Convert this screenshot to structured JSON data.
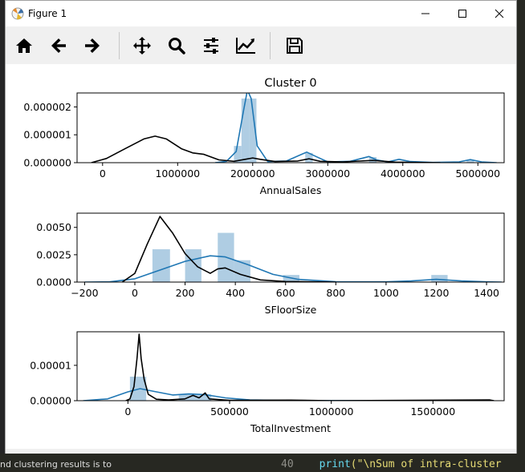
{
  "window": {
    "title": "Figure 1"
  },
  "toolbar": {
    "buttons": [
      "home-icon",
      "back-arrow-icon",
      "forward-arrow-icon",
      "pan-icon",
      "zoom-icon",
      "subplots-icon",
      "edit-curves-icon",
      "save-icon"
    ]
  },
  "background": {
    "left_text": "nd clustering results is to",
    "code_line_number": "40",
    "code_keyword": "print",
    "code_string": "(\"\\nSum of intra-cluster"
  },
  "chart_data": [
    {
      "type": "area",
      "title": "Cluster 0",
      "xlabel": "AnnualSales",
      "ylabel": "",
      "xlim": [
        -340000,
        5350000
      ],
      "ylim": [
        0,
        2.5e-06
      ],
      "xticks": [
        0,
        1000000,
        2000000,
        3000000,
        4000000,
        5000000
      ],
      "xtick_labels": [
        "0",
        "1000000",
        "2000000",
        "3000000",
        "4000000",
        "5000000"
      ],
      "yticks": [
        0,
        1e-06,
        2e-06
      ],
      "ytick_labels": [
        "0.000000",
        "0.000001",
        "0.000002"
      ],
      "hist": {
        "color": "#a6c8e0",
        "bins": [
          [
            1750000,
            1850000,
            6e-07
          ],
          [
            1850000,
            1950000,
            2.3e-06
          ],
          [
            1950000,
            2050000,
            2.3e-06
          ],
          [
            2700000,
            2800000,
            3.5e-07
          ],
          [
            3550000,
            3650000,
            2e-07
          ],
          [
            4850000,
            4950000,
            8e-08
          ]
        ]
      },
      "series": [
        {
          "color": "#1f77b4",
          "points": [
            [
              1500000,
              0
            ],
            [
              1650000,
              5e-08
            ],
            [
              1780000,
              4e-07
            ],
            [
              1880000,
              1.9e-06
            ],
            [
              1930000,
              2.6e-06
            ],
            [
              1980000,
              2.3e-06
            ],
            [
              2060000,
              6e-07
            ],
            [
              2200000,
              4e-08
            ],
            [
              2450000,
              6e-08
            ],
            [
              2650000,
              3e-07
            ],
            [
              2720000,
              3.8e-07
            ],
            [
              2820000,
              2.5e-07
            ],
            [
              3000000,
              3e-08
            ],
            [
              3300000,
              5e-08
            ],
            [
              3550000,
              2.2e-07
            ],
            [
              3650000,
              1e-07
            ],
            [
              3800000,
              3e-08
            ],
            [
              3950000,
              1.2e-07
            ],
            [
              4100000,
              4e-08
            ],
            [
              4400000,
              1e-08
            ],
            [
              4750000,
              3e-08
            ],
            [
              4900000,
              1.1e-07
            ],
            [
              5050000,
              3e-08
            ],
            [
              5250000,
              0
            ]
          ]
        },
        {
          "color": "#000000",
          "points": [
            [
              -150000,
              0
            ],
            [
              50000,
              1.5e-07
            ],
            [
              300000,
              5e-07
            ],
            [
              550000,
              8.5e-07
            ],
            [
              700000,
              9.5e-07
            ],
            [
              850000,
              8.5e-07
            ],
            [
              1050000,
              5e-07
            ],
            [
              1200000,
              3.5e-07
            ],
            [
              1350000,
              3e-07
            ],
            [
              1550000,
              1e-07
            ],
            [
              1750000,
              5e-08
            ],
            [
              1900000,
              1.2e-07
            ],
            [
              2000000,
              1.7e-07
            ],
            [
              2100000,
              1.2e-07
            ],
            [
              2300000,
              4e-08
            ],
            [
              2600000,
              6e-08
            ],
            [
              2750000,
              1.4e-07
            ],
            [
              2900000,
              5e-08
            ],
            [
              3200000,
              3e-08
            ],
            [
              3600000,
              8e-08
            ],
            [
              3900000,
              2e-08
            ],
            [
              4500000,
              0
            ]
          ]
        }
      ]
    },
    {
      "type": "area",
      "title": "",
      "xlabel": "SFloorSize",
      "ylabel": "",
      "xlim": [
        -230,
        1470
      ],
      "ylim": [
        0,
        0.0063
      ],
      "xticks": [
        -200,
        0,
        200,
        400,
        600,
        800,
        1000,
        1200,
        1400
      ],
      "xtick_labels": [
        "−200",
        "0",
        "200",
        "400",
        "600",
        "800",
        "1000",
        "1200",
        "1400"
      ],
      "yticks": [
        0,
        0.0025,
        0.005
      ],
      "ytick_labels": [
        "0.0000",
        "0.0025",
        "0.0050"
      ],
      "hist": {
        "color": "#a6c8e0",
        "bins": [
          [
            70,
            140,
            0.003
          ],
          [
            200,
            265,
            0.003
          ],
          [
            330,
            395,
            0.0045
          ],
          [
            395,
            460,
            0.002
          ],
          [
            590,
            655,
            0.00065
          ],
          [
            1180,
            1245,
            0.00065
          ]
        ]
      },
      "series": [
        {
          "color": "#1f77b4",
          "points": [
            [
              -200,
              0
            ],
            [
              -100,
              2e-05
            ],
            [
              0,
              0.0003
            ],
            [
              100,
              0.0011
            ],
            [
              200,
              0.0019
            ],
            [
              300,
              0.0024
            ],
            [
              360,
              0.0023
            ],
            [
              450,
              0.0016
            ],
            [
              550,
              0.0007
            ],
            [
              650,
              0.00025
            ],
            [
              800,
              3e-05
            ],
            [
              1000,
              2e-05
            ],
            [
              1100,
              0.0001
            ],
            [
              1200,
              0.00025
            ],
            [
              1300,
              0.0001
            ],
            [
              1400,
              2e-05
            ],
            [
              1460,
              0
            ]
          ]
        },
        {
          "color": "#000000",
          "points": [
            [
              -50,
              0
            ],
            [
              0,
              0.0008
            ],
            [
              50,
              0.0035
            ],
            [
              100,
              0.006
            ],
            [
              150,
              0.0045
            ],
            [
              200,
              0.0026
            ],
            [
              250,
              0.0014
            ],
            [
              300,
              0.0008
            ],
            [
              330,
              0.0012
            ],
            [
              360,
              0.0013
            ],
            [
              420,
              0.0007
            ],
            [
              500,
              0.0002
            ],
            [
              600,
              5e-05
            ],
            [
              800,
              0
            ]
          ]
        }
      ]
    },
    {
      "type": "area",
      "title": "",
      "xlabel": "TotalInvestment",
      "ylabel": "",
      "xlim": [
        -250000,
        1850000
      ],
      "ylim": [
        0,
        1.95e-05
      ],
      "xticks": [
        0,
        500000,
        1000000,
        1500000
      ],
      "xtick_labels": [
        "0",
        "500000",
        "1000000",
        "1500000"
      ],
      "yticks": [
        0,
        1e-05
      ],
      "ytick_labels": [
        "0.00000",
        "0.00001"
      ],
      "hist": {
        "color": "#a6c8e0",
        "bins": [
          [
            10000,
            90000,
            6.8e-06
          ],
          [
            250000,
            330000,
            1.8e-06
          ],
          [
            330000,
            410000,
            1.8e-06
          ]
        ]
      },
      "series": [
        {
          "color": "#1f77b4",
          "points": [
            [
              -220000,
              0
            ],
            [
              -100000,
              5e-07
            ],
            [
              0,
              2.5e-06
            ],
            [
              60000,
              3.4e-06
            ],
            [
              130000,
              2.6e-06
            ],
            [
              220000,
              1.6e-06
            ],
            [
              300000,
              1.9e-06
            ],
            [
              380000,
              1.7e-06
            ],
            [
              480000,
              8e-07
            ],
            [
              600000,
              2e-07
            ],
            [
              800000,
              5e-08
            ],
            [
              1200000,
              2e-08
            ],
            [
              1800000,
              0
            ]
          ]
        },
        {
          "color": "#000000",
          "points": [
            [
              -10000,
              0
            ],
            [
              10000,
              5e-07
            ],
            [
              30000,
              4e-06
            ],
            [
              45000,
              1.2e-05
            ],
            [
              55000,
              1.88e-05
            ],
            [
              65000,
              1.2e-05
            ],
            [
              80000,
              6e-06
            ],
            [
              100000,
              1.8e-06
            ],
            [
              140000,
              4e-07
            ],
            [
              200000,
              2e-07
            ],
            [
              280000,
              5e-07
            ],
            [
              320000,
              1.5e-06
            ],
            [
              350000,
              8e-07
            ],
            [
              380000,
              2.2e-06
            ],
            [
              400000,
              5e-07
            ],
            [
              500000,
              1e-07
            ],
            [
              800000,
              1.5e-07
            ],
            [
              1000000,
              0
            ],
            [
              1780000,
              2e-07
            ],
            [
              1800000,
              0
            ]
          ]
        }
      ]
    }
  ]
}
